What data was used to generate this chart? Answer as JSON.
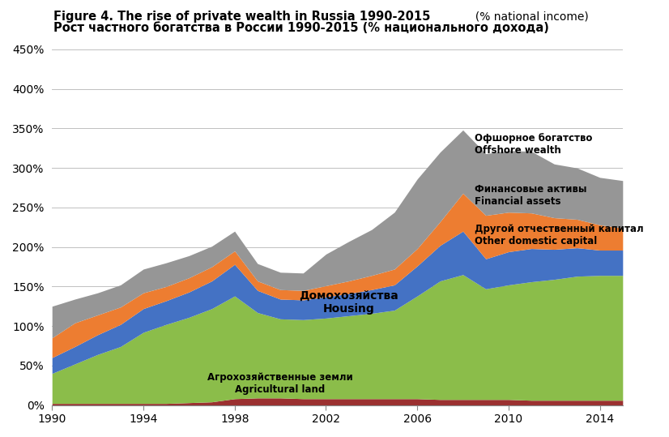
{
  "years": [
    1990,
    1991,
    1992,
    1993,
    1994,
    1995,
    1996,
    1997,
    1998,
    1999,
    2000,
    2001,
    2002,
    2003,
    2004,
    2005,
    2006,
    2007,
    2008,
    2009,
    2010,
    2011,
    2012,
    2013,
    2014,
    2015
  ],
  "agricultural_land": [
    2,
    2,
    2,
    2,
    2,
    2,
    3,
    4,
    8,
    9,
    9,
    8,
    8,
    8,
    8,
    8,
    8,
    7,
    7,
    7,
    7,
    6,
    6,
    6,
    6,
    6
  ],
  "housing": [
    38,
    50,
    62,
    72,
    90,
    100,
    108,
    118,
    130,
    108,
    100,
    100,
    102,
    105,
    108,
    112,
    130,
    150,
    158,
    140,
    145,
    150,
    153,
    157,
    158,
    158
  ],
  "other_domestic": [
    20,
    22,
    25,
    28,
    30,
    30,
    32,
    35,
    40,
    28,
    25,
    25,
    27,
    28,
    30,
    32,
    38,
    45,
    55,
    38,
    42,
    42,
    38,
    36,
    32,
    32
  ],
  "financial_assets": [
    25,
    30,
    25,
    22,
    20,
    18,
    18,
    18,
    17,
    12,
    12,
    12,
    14,
    16,
    18,
    20,
    22,
    30,
    48,
    55,
    50,
    45,
    40,
    36,
    32,
    28
  ],
  "offshore_wealth": [
    40,
    30,
    28,
    28,
    30,
    30,
    28,
    26,
    25,
    22,
    22,
    22,
    40,
    50,
    58,
    72,
    88,
    88,
    80,
    78,
    78,
    78,
    68,
    65,
    60,
    60
  ],
  "colors": {
    "agricultural_land": "#9B3030",
    "housing": "#8BBD4A",
    "other_domestic": "#4472C4",
    "financial_assets": "#ED7D31",
    "offshore_wealth": "#969696"
  },
  "title_en_bold": "Figure 4. The rise of private wealth in Russia 1990-2015",
  "title_en_normal": "  (% national income)",
  "title_ru": "Рост частного богатства в России 1990-2015 (% национального дохода)",
  "ylabel_ticks": [
    "0%",
    "50%",
    "100%",
    "150%",
    "200%",
    "250%",
    "300%",
    "350%",
    "400%",
    "450%"
  ],
  "yticks": [
    0,
    50,
    100,
    150,
    200,
    250,
    300,
    350,
    400,
    450
  ],
  "ylim": [
    0,
    450
  ],
  "xlim": [
    1990,
    2015
  ],
  "xticks": [
    1990,
    1994,
    1998,
    2002,
    2006,
    2010,
    2014
  ],
  "label_agr_ru": "Агрохозяйственные земли",
  "label_agr_en": "Agricultural land",
  "label_housing_ru": "Домохозяйства",
  "label_housing_en": "Housing",
  "label_other_ru": "Другой отчественный капитал",
  "label_other_en": "Other domestic capital",
  "label_fin_ru": "Финансовые активы",
  "label_fin_en": "Financial assets",
  "label_off_ru": "Офшорное богатство",
  "label_off_en": "Offshore wealth",
  "background_color": "#FFFFFF"
}
